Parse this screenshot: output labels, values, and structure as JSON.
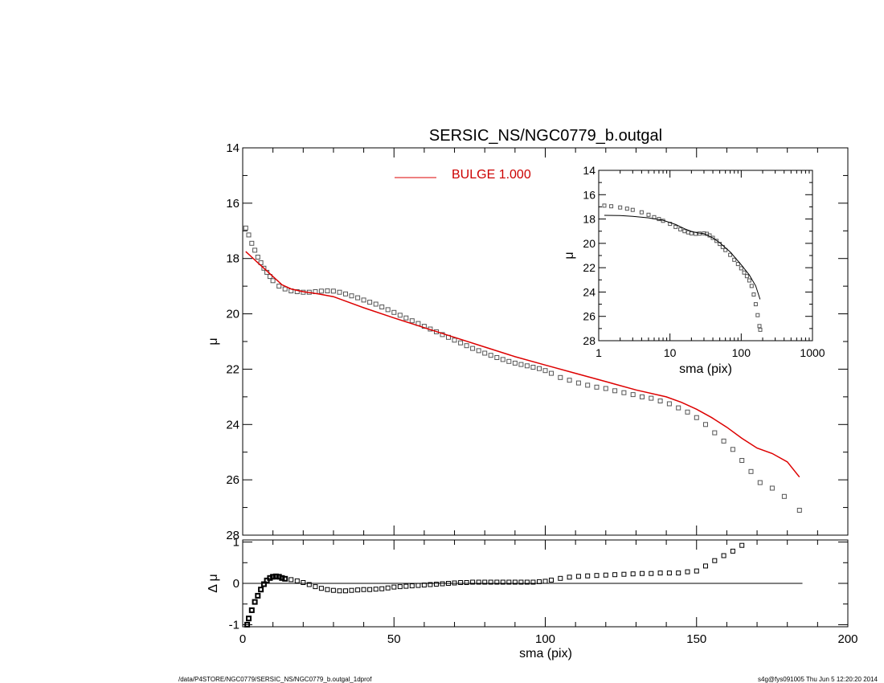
{
  "title": "SERSIC_NS/NGC0779_b.outgal",
  "legend": {
    "label": "BULGE  1.000",
    "color": "#dd0000"
  },
  "footer": {
    "left": "/data/P4STORE/NGC0779/SERSIC_NS/NGC0779_b.outgal_1dprof",
    "right": "s4g@fys091005  Thu Jun  5 12:20:20 2014"
  },
  "chart_data": [
    {
      "type": "scatter",
      "panel": "main",
      "xlabel": "sma (pix)",
      "ylabel": "μ",
      "xlim": [
        0,
        200
      ],
      "ylim": [
        28,
        14
      ],
      "xticks": [
        0,
        50,
        100,
        150,
        200
      ],
      "yticks": [
        14,
        16,
        18,
        20,
        22,
        24,
        26,
        28
      ],
      "series": [
        {
          "marker": "square",
          "color": "#555555",
          "x": [
            1,
            2,
            3,
            4,
            5,
            6,
            7,
            8,
            9,
            10,
            12,
            14,
            16,
            18,
            20,
            22,
            24,
            26,
            28,
            30,
            32,
            34,
            36,
            38,
            40,
            42,
            44,
            46,
            48,
            50,
            52,
            54,
            56,
            58,
            60,
            62,
            64,
            66,
            68,
            70,
            72,
            74,
            76,
            78,
            80,
            82,
            84,
            86,
            88,
            90,
            92,
            94,
            96,
            98,
            100,
            102,
            105,
            108,
            111,
            114,
            117,
            120,
            123,
            126,
            129,
            132,
            135,
            138,
            141,
            144,
            147,
            150,
            153,
            156,
            159,
            162,
            165,
            168,
            171,
            175,
            179,
            184
          ],
          "y": [
            16.9,
            17.15,
            17.45,
            17.7,
            17.95,
            18.15,
            18.35,
            18.5,
            18.65,
            18.8,
            19.0,
            19.1,
            19.17,
            19.2,
            19.22,
            19.22,
            19.2,
            19.18,
            19.17,
            19.18,
            19.22,
            19.28,
            19.35,
            19.42,
            19.5,
            19.58,
            19.65,
            19.75,
            19.85,
            19.95,
            20.05,
            20.15,
            20.25,
            20.35,
            20.45,
            20.55,
            20.65,
            20.75,
            20.85,
            20.95,
            21.05,
            21.15,
            21.25,
            21.33,
            21.42,
            21.5,
            21.58,
            21.65,
            21.72,
            21.78,
            21.83,
            21.88,
            21.93,
            21.98,
            22.05,
            22.15,
            22.3,
            22.4,
            22.5,
            22.58,
            22.65,
            22.7,
            22.78,
            22.85,
            22.92,
            23.0,
            23.05,
            23.15,
            23.25,
            23.4,
            23.55,
            23.75,
            24.0,
            24.3,
            24.6,
            24.9,
            25.3,
            25.7,
            26.1,
            26.3,
            26.6,
            27.1
          ]
        },
        {
          "name": "BULGE  1.000",
          "marker": "line",
          "color": "#dd0000",
          "x": [
            1,
            3,
            5,
            7,
            10,
            13,
            16,
            20,
            25,
            30,
            40,
            50,
            60,
            70,
            80,
            90,
            100,
            110,
            120,
            130,
            140,
            145,
            150,
            155,
            160,
            165,
            170,
            175,
            180,
            184
          ],
          "y": [
            17.75,
            17.95,
            18.15,
            18.35,
            18.65,
            18.95,
            19.1,
            19.2,
            19.28,
            19.38,
            19.78,
            20.15,
            20.5,
            20.85,
            21.2,
            21.55,
            21.85,
            22.15,
            22.45,
            22.75,
            23.0,
            23.2,
            23.45,
            23.75,
            24.1,
            24.5,
            24.85,
            25.05,
            25.35,
            25.9
          ]
        }
      ]
    },
    {
      "type": "scatter",
      "panel": "residual",
      "xlabel": "sma (pix)",
      "ylabel": "Δ μ",
      "xlim": [
        0,
        200
      ],
      "ylim": [
        -1.05,
        1.05
      ],
      "xticks": [
        0,
        50,
        100,
        150,
        200
      ],
      "yticks": [
        -1,
        0,
        1
      ],
      "reference_line": 0,
      "reference_xrange": [
        1,
        185
      ],
      "series": [
        {
          "marker": "square",
          "color": "#000000",
          "x": [
            1.5,
            2,
            3,
            4,
            5,
            6,
            7,
            8,
            9,
            10,
            11,
            12,
            13,
            14,
            16,
            18,
            20,
            22,
            24,
            26,
            28,
            30,
            32,
            34,
            36,
            38,
            40,
            42,
            44,
            46,
            48,
            50,
            52,
            54,
            56,
            58,
            60,
            62,
            64,
            66,
            68,
            70,
            72,
            74,
            76,
            78,
            80,
            82,
            84,
            86,
            88,
            90,
            92,
            94,
            96,
            98,
            100,
            102,
            105,
            108,
            111,
            114,
            117,
            120,
            123,
            126,
            129,
            132,
            135,
            138,
            141,
            144,
            147,
            150,
            153,
            156,
            159,
            162,
            165
          ],
          "y": [
            -1.0,
            -0.85,
            -0.65,
            -0.45,
            -0.3,
            -0.15,
            -0.02,
            0.07,
            0.13,
            0.16,
            0.17,
            0.16,
            0.13,
            0.11,
            0.09,
            0.06,
            0.02,
            -0.03,
            -0.08,
            -0.12,
            -0.15,
            -0.17,
            -0.18,
            -0.18,
            -0.17,
            -0.16,
            -0.15,
            -0.15,
            -0.14,
            -0.13,
            -0.11,
            -0.09,
            -0.08,
            -0.07,
            -0.06,
            -0.05,
            -0.04,
            -0.03,
            -0.02,
            -0.01,
            0.0,
            0.01,
            0.02,
            0.02,
            0.03,
            0.03,
            0.03,
            0.03,
            0.03,
            0.03,
            0.03,
            0.03,
            0.03,
            0.03,
            0.03,
            0.04,
            0.05,
            0.08,
            0.12,
            0.15,
            0.17,
            0.18,
            0.19,
            0.2,
            0.21,
            0.22,
            0.23,
            0.24,
            0.24,
            0.25,
            0.25,
            0.25,
            0.28,
            0.3,
            0.42,
            0.55,
            0.67,
            0.78,
            0.92
          ]
        }
      ]
    },
    {
      "type": "scatter",
      "panel": "inset",
      "xlabel": "sma (pix)",
      "ylabel": "μ",
      "xscale": "log",
      "xlim": [
        1,
        1000
      ],
      "ylim": [
        28,
        14
      ],
      "xticks": [
        1,
        10,
        100,
        1000
      ],
      "yticks": [
        14,
        16,
        18,
        20,
        22,
        24,
        26,
        28
      ],
      "series": [
        {
          "marker": "square",
          "color": "#555555",
          "x": [
            1.2,
            1.5,
            2,
            2.5,
            3,
            4,
            5,
            6,
            7,
            8,
            10,
            12,
            14,
            16,
            18,
            20,
            23,
            26,
            30,
            33,
            36,
            40,
            45,
            50,
            55,
            60,
            70,
            80,
            90,
            100,
            110,
            120,
            130,
            140,
            150,
            160,
            170,
            180,
            185
          ],
          "y": [
            16.9,
            16.95,
            17.05,
            17.15,
            17.25,
            17.45,
            17.65,
            17.85,
            18.0,
            18.15,
            18.4,
            18.65,
            18.85,
            19.0,
            19.1,
            19.18,
            19.22,
            19.2,
            19.18,
            19.22,
            19.35,
            19.55,
            19.8,
            20.05,
            20.3,
            20.55,
            20.95,
            21.35,
            21.7,
            22.05,
            22.4,
            22.7,
            23.05,
            23.5,
            24.2,
            25.0,
            25.9,
            26.8,
            27.1
          ]
        },
        {
          "marker": "line",
          "color": "#000000",
          "x": [
            1.2,
            2,
            3,
            5,
            8,
            12,
            16,
            20,
            25,
            30,
            40,
            50,
            70,
            100,
            130,
            160,
            184
          ],
          "y": [
            17.7,
            17.72,
            17.78,
            17.9,
            18.1,
            18.45,
            18.8,
            19.02,
            19.15,
            19.2,
            19.55,
            19.95,
            20.7,
            21.75,
            22.6,
            23.5,
            24.6
          ]
        }
      ]
    }
  ]
}
